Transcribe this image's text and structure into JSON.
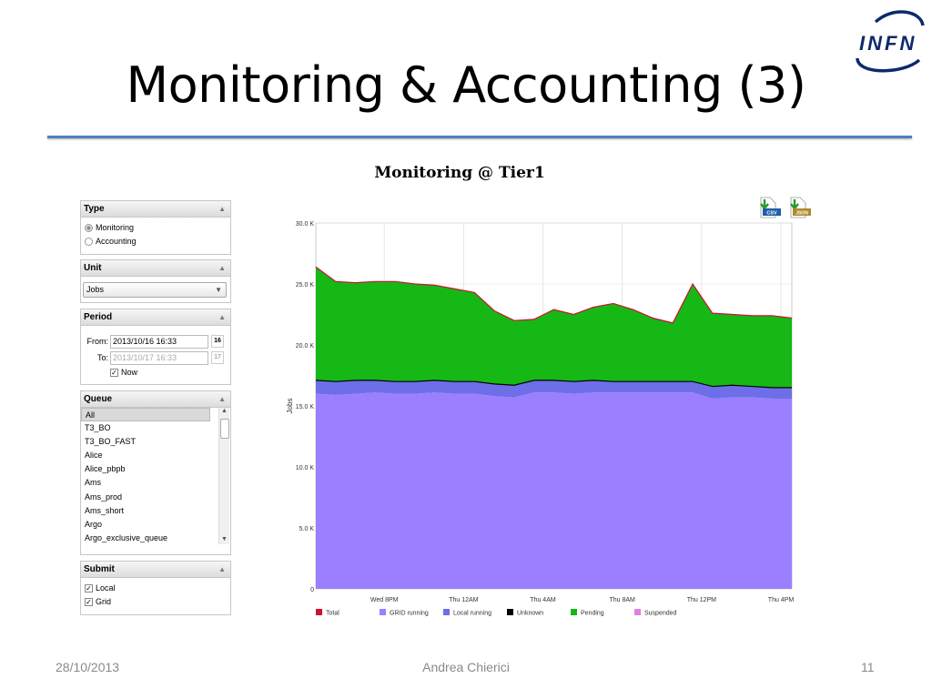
{
  "slide": {
    "title": "Monitoring & Accounting (3)",
    "logo_text": "INFN",
    "footer_date": "28/10/2013",
    "footer_author": "Andrea Chierici",
    "footer_page": "11"
  },
  "app": {
    "title": "Monitoring @ Tier1",
    "export_csv": "CSV",
    "export_json": "JSON"
  },
  "panels": {
    "type": {
      "header": "Type",
      "options": [
        "Monitoring",
        "Accounting"
      ],
      "selected": "Monitoring"
    },
    "unit": {
      "header": "Unit",
      "value": "Jobs"
    },
    "period": {
      "header": "Period",
      "from_label": "From:",
      "from_value": "2013/10/16 16:33",
      "from_cal": "16",
      "to_label": "To:",
      "to_value": "2013/10/17 16:33",
      "to_cal": "17",
      "now_label": "Now",
      "now_checked": true
    },
    "queue": {
      "header": "Queue",
      "items": [
        "All",
        "T3_BO",
        "T3_BO_FAST",
        "Alice",
        "Alice_pbpb",
        "Ams",
        "Ams_prod",
        "Ams_short",
        "Argo",
        "Argo_exclusive_queue"
      ],
      "selected": "All"
    },
    "submit": {
      "header": "Submit",
      "options": [
        "Local",
        "Grid"
      ],
      "checked": [
        true,
        true
      ]
    }
  },
  "chart_data": {
    "type": "area",
    "title": "",
    "ylabel": "Jobs",
    "ylim": [
      0,
      30000
    ],
    "yticks": [
      "0",
      "5.0 K",
      "10.0 K",
      "15.0 K",
      "20.0 K",
      "25.0 K",
      "30.0 K"
    ],
    "xticks": [
      "Wed 8PM",
      "Thu 12AM",
      "Thu 4AM",
      "Thu 8AM",
      "Thu 12PM",
      "Thu 4PM"
    ],
    "x_hours": [
      0,
      1,
      2,
      3,
      4,
      5,
      6,
      7,
      8,
      9,
      10,
      11,
      12,
      13,
      14,
      15,
      16,
      17,
      18,
      19,
      20,
      21,
      22,
      23,
      24
    ],
    "x_start": "2013/10/16 16:33",
    "series": [
      {
        "name": "GRID running",
        "color": "#9b7fff",
        "values": [
          16000,
          15900,
          16000,
          16100,
          16000,
          16000,
          16100,
          16000,
          16000,
          15800,
          15700,
          16100,
          16100,
          16000,
          16100,
          16100,
          16100,
          16100,
          16100,
          16100,
          15600,
          15700,
          15700,
          15600,
          15600
        ]
      },
      {
        "name": "Local running",
        "color": "#6e6ee8",
        "values": [
          1100,
          1100,
          1100,
          1000,
          1000,
          1000,
          1000,
          1000,
          1000,
          1000,
          1000,
          1000,
          1000,
          1000,
          1000,
          900,
          900,
          900,
          900,
          900,
          1000,
          1000,
          900,
          900,
          900
        ]
      },
      {
        "name": "Unknown",
        "color": "#000000",
        "values": [
          0,
          0,
          0,
          0,
          0,
          0,
          0,
          0,
          0,
          0,
          0,
          0,
          0,
          0,
          0,
          0,
          0,
          0,
          0,
          0,
          0,
          0,
          0,
          0,
          0
        ]
      },
      {
        "name": "Pending",
        "color": "#16b816",
        "values": [
          9300,
          8200,
          8000,
          8100,
          8200,
          8000,
          7800,
          7600,
          7300,
          6000,
          5300,
          5000,
          5800,
          5500,
          6000,
          6400,
          5900,
          5200,
          4800,
          8000,
          6000,
          5800,
          5800,
          5900,
          5700
        ]
      },
      {
        "name": "Suspended",
        "color": "#e07fe0",
        "values": [
          0,
          0,
          0,
          0,
          0,
          0,
          0,
          0,
          0,
          0,
          0,
          0,
          0,
          0,
          0,
          0,
          0,
          0,
          0,
          0,
          0,
          0,
          0,
          0,
          0
        ]
      }
    ],
    "total": {
      "name": "Total",
      "color": "#cc1133"
    },
    "legend": [
      "Total",
      "GRID running",
      "Local running",
      "Unknown",
      "Pending",
      "Suspended"
    ],
    "legend_colors": [
      "#cc1133",
      "#9b7fff",
      "#6e6ee8",
      "#000000",
      "#16b816",
      "#e07fe0"
    ],
    "grid": true,
    "legend_position": "bottom"
  }
}
